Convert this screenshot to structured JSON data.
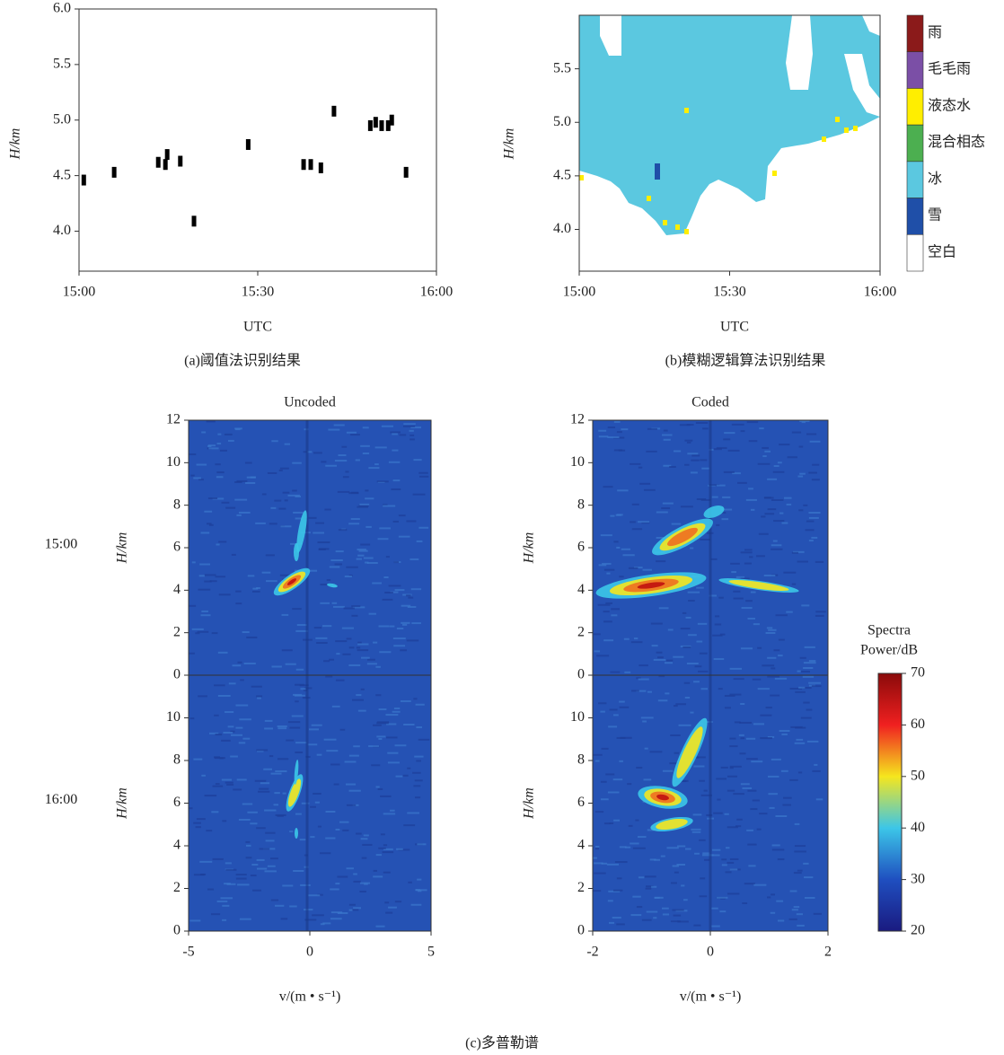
{
  "chart_data": [
    {
      "type": "scatter",
      "caption": "(a)阈值法识别结果",
      "x_label": "UTC",
      "y_label": "H/km",
      "color": "#000000",
      "x": [
        0.8,
        5.9,
        13.3,
        14.5,
        14.8,
        17.0,
        19.3,
        28.4,
        42.8,
        37.7,
        38.9,
        40.6,
        48.9,
        49.8,
        50.8,
        51.9,
        52.5,
        54.9
      ],
      "values": [
        4.46,
        4.53,
        4.62,
        4.6,
        4.69,
        4.63,
        4.09,
        4.78,
        5.08,
        4.6,
        4.6,
        4.57,
        4.95,
        4.98,
        4.95,
        4.95,
        5.0,
        4.53
      ],
      "xlim": [
        0,
        60
      ],
      "xticks": [
        {
          "value": 0,
          "label": "15:00"
        },
        {
          "value": 30,
          "label": "15:30"
        },
        {
          "value": 60,
          "label": "16:00"
        }
      ],
      "ylim": [
        3.64,
        6.0
      ],
      "yticks": [
        {
          "value": 4,
          "label": "4.0"
        },
        4.5,
        {
          "value": 5,
          "label": "5.0"
        },
        5.5,
        {
          "value": 6,
          "label": "6.0"
        }
      ]
    },
    {
      "type": "classification",
      "caption": "(b)模糊逻辑算法识别结果",
      "x_label": "UTC",
      "y_label": "H/km",
      "xlim": [
        0,
        60
      ],
      "xticks": [
        {
          "value": 0,
          "label": "15:00"
        },
        {
          "value": 30,
          "label": "15:30"
        },
        {
          "value": 60,
          "label": "16:00"
        }
      ],
      "ylim": [
        3.61,
        6.0
      ],
      "yticks": [
        {
          "value": 4,
          "label": "4.0"
        },
        4.5,
        {
          "value": 5,
          "label": "5.0"
        },
        5.5
      ],
      "legend": {
        "categories": [
          "雨",
          "毛毛雨",
          "液态水",
          "混合相态",
          "冰",
          "雪",
          "空白"
        ],
        "colors": [
          "#8b1a1a",
          "#7b4fa6",
          "#ffee00",
          "#4caf50",
          "#5bc8e0",
          "#1f4fa8",
          "#ffffff"
        ]
      }
    },
    {
      "type": "spectrogram",
      "caption": "(c)多普勒谱",
      "x_label": "v/(m • s⁻¹)",
      "y_label": "H/km",
      "rows": [
        "15:00",
        "16:00"
      ],
      "panels": [
        {
          "title": "Uncoded",
          "xlim": [
            -5,
            5
          ],
          "xticks": [
            -5,
            0,
            5
          ]
        },
        {
          "title": "Coded",
          "xlim": [
            -2,
            2
          ],
          "xticks": [
            -2,
            0,
            2
          ]
        }
      ],
      "ylim": [
        0,
        12
      ],
      "yticks": [
        0,
        2,
        4,
        6,
        8,
        10,
        12
      ],
      "colorbar": {
        "label": [
          "Spectra",
          "Power/dB"
        ],
        "lim": [
          20,
          70
        ],
        "ticks": [
          20,
          30,
          40,
          50,
          60,
          70
        ]
      }
    }
  ]
}
